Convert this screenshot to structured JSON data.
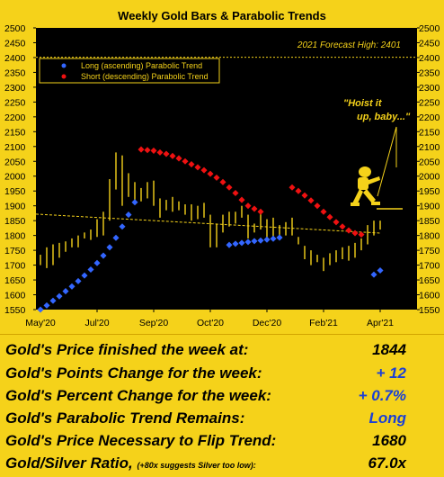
{
  "chart_data": {
    "type": "candlestick",
    "title": "Weekly Gold Bars & Parabolic Trends",
    "forecast_label": "2021 Forecast High: 2401",
    "forecast_high": 2401,
    "annotation": "\"Hoist it up, baby...\"",
    "annotation_lines": [
      "\"Hoist it",
      "up, baby...\""
    ],
    "ylim": [
      1550,
      2500
    ],
    "yticks": [
      1550,
      1600,
      1650,
      1700,
      1750,
      1800,
      1850,
      1900,
      1950,
      2000,
      2050,
      2100,
      2150,
      2200,
      2250,
      2300,
      2350,
      2400,
      2450,
      2500
    ],
    "xtick_labels": [
      "May'20",
      "Jul'20",
      "Sep'20",
      "Oct'20",
      "Dec'20",
      "Feb'21",
      "Apr'21"
    ],
    "xtick_weeks": [
      0,
      9,
      18,
      27,
      36,
      45,
      54
    ],
    "grid": false,
    "legend_position": "top-left",
    "colors": {
      "background": "#000000",
      "frame": "#f5d21a",
      "bars": "#f5d21a",
      "long_dots": "#3366ff",
      "short_dots": "#ee1111",
      "trend_line": "#f5d21a"
    },
    "legend": [
      {
        "name": "Long (ascending) Parabolic Trend",
        "color": "#3366ff"
      },
      {
        "name": "Short (descending) Parabolic Trend",
        "color": "#ee1111"
      }
    ],
    "bars": [
      [
        1735,
        1700
      ],
      [
        1760,
        1690
      ],
      [
        1770,
        1700
      ],
      [
        1775,
        1725
      ],
      [
        1780,
        1745
      ],
      [
        1790,
        1760
      ],
      [
        1800,
        1760
      ],
      [
        1810,
        1790
      ],
      [
        1820,
        1785
      ],
      [
        1855,
        1795
      ],
      [
        1880,
        1800
      ],
      [
        1990,
        1850
      ],
      [
        2080,
        1955
      ],
      [
        2070,
        1900
      ],
      [
        2010,
        1930
      ],
      [
        1980,
        1915
      ],
      [
        1960,
        1915
      ],
      [
        1980,
        1925
      ],
      [
        1985,
        1900
      ],
      [
        1925,
        1860
      ],
      [
        1920,
        1885
      ],
      [
        1930,
        1880
      ],
      [
        1915,
        1885
      ],
      [
        1905,
        1870
      ],
      [
        1905,
        1850
      ],
      [
        1900,
        1855
      ],
      [
        1910,
        1860
      ],
      [
        1870,
        1760
      ],
      [
        1840,
        1760
      ],
      [
        1870,
        1810
      ],
      [
        1880,
        1830
      ],
      [
        1880,
        1840
      ],
      [
        1900,
        1860
      ],
      [
        1870,
        1790
      ],
      [
        1840,
        1810
      ],
      [
        1880,
        1820
      ],
      [
        1855,
        1780
      ],
      [
        1860,
        1795
      ],
      [
        1835,
        1795
      ],
      [
        1845,
        1800
      ],
      [
        1860,
        1800
      ],
      [
        1795,
        1770
      ],
      [
        1765,
        1720
      ],
      [
        1750,
        1700
      ],
      [
        1735,
        1710
      ],
      [
        1725,
        1680
      ],
      [
        1740,
        1700
      ],
      [
        1750,
        1710
      ],
      [
        1760,
        1720
      ],
      [
        1765,
        1715
      ],
      [
        1775,
        1725
      ],
      [
        1790,
        1750
      ],
      [
        1835,
        1770
      ],
      [
        1850,
        1800
      ],
      [
        1850,
        1820
      ]
    ],
    "long_trend": [
      [
        0,
        1550
      ],
      [
        1,
        1564
      ],
      [
        2,
        1580
      ],
      [
        3,
        1595
      ],
      [
        4,
        1612
      ],
      [
        5,
        1628
      ],
      [
        6,
        1646
      ],
      [
        7,
        1665
      ],
      [
        8,
        1685
      ],
      [
        9,
        1707
      ],
      [
        10,
        1732
      ],
      [
        11,
        1760
      ],
      [
        12,
        1792
      ],
      [
        13,
        1830
      ],
      [
        14,
        1870
      ],
      [
        15,
        1912
      ],
      [
        30,
        1768
      ],
      [
        31,
        1772
      ],
      [
        32,
        1775
      ],
      [
        33,
        1778
      ],
      [
        34,
        1781
      ],
      [
        35,
        1783
      ],
      [
        36,
        1786
      ],
      [
        37,
        1789
      ],
      [
        38,
        1793
      ],
      [
        53,
        1668
      ],
      [
        54,
        1682
      ]
    ],
    "short_trend": [
      [
        16,
        2090
      ],
      [
        17,
        2088
      ],
      [
        18,
        2086
      ],
      [
        19,
        2080
      ],
      [
        20,
        2075
      ],
      [
        21,
        2068
      ],
      [
        22,
        2060
      ],
      [
        23,
        2050
      ],
      [
        24,
        2040
      ],
      [
        25,
        2030
      ],
      [
        26,
        2020
      ],
      [
        27,
        2008
      ],
      [
        28,
        1995
      ],
      [
        29,
        1980
      ],
      [
        30,
        1962
      ],
      [
        31,
        1943
      ],
      [
        32,
        1920
      ],
      [
        33,
        1900
      ],
      [
        34,
        1890
      ],
      [
        35,
        1880
      ],
      [
        40,
        1962
      ],
      [
        41,
        1950
      ],
      [
        42,
        1935
      ],
      [
        43,
        1918
      ],
      [
        44,
        1900
      ],
      [
        45,
        1880
      ],
      [
        46,
        1862
      ],
      [
        47,
        1845
      ],
      [
        48,
        1830
      ],
      [
        49,
        1817
      ],
      [
        50,
        1808
      ],
      [
        51,
        1803
      ]
    ],
    "trend_line": {
      "start": [
        0,
        1872
      ],
      "end": [
        54,
        1808
      ]
    }
  },
  "stats": [
    {
      "label": "Gold's Price finished the week at:",
      "value": "1844",
      "value_color": "#000000"
    },
    {
      "label": "Gold's Points Change for the week:",
      "value": "+ 12",
      "value_color": "#1a3fd6"
    },
    {
      "label": "Gold's Percent Change for the week:",
      "value": "+ 0.7%",
      "value_color": "#1a3fd6"
    },
    {
      "label": "Gold's Parabolic Trend Remains:",
      "value": "Long",
      "value_color": "#1a3fd6"
    },
    {
      "label": "Gold's Price Necessary to Flip Trend:",
      "value": "1680",
      "value_color": "#000000"
    },
    {
      "label": "Gold/Silver Ratio,",
      "note": "(+80x suggests Silver too low):",
      "value": "67.0x",
      "value_color": "#000000"
    }
  ]
}
